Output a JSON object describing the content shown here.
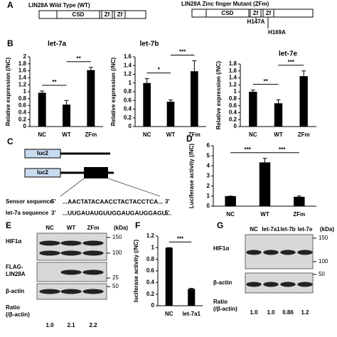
{
  "panel_labels": [
    "A",
    "B",
    "C",
    "D",
    "E",
    "F",
    "G"
  ],
  "panel_a": {
    "wt_title": "LIN28A Wild Type (WT)",
    "wt_domains": [
      "CSD",
      "Zf",
      "Zf"
    ],
    "zfm_title": "LIN28A Zinc finger Mutant (ZFm)",
    "zfm_domains": [
      "CSD",
      "Zf",
      "Zf"
    ],
    "mutations": [
      "H147A",
      "H169A"
    ]
  },
  "panel_c": {
    "reporter": [
      "luc2",
      "luc2"
    ],
    "rows": [
      [
        "Sensor sequence",
        "5'",
        "...AACTATACAACCTACTACCTCA...",
        "3'"
      ],
      [
        "let-7a sequence",
        "3'",
        "...UUGAUAUGUUGGAUGAUGGAGU...",
        "5'"
      ]
    ]
  },
  "panel_e": {
    "lanes": [
      "NC",
      "WT",
      "ZFm"
    ],
    "kda_header": "(kDa)",
    "blots": [
      {
        "label_lines": [
          "HIF1α"
        ],
        "markers": [
          "150",
          "100"
        ]
      },
      {
        "label_lines": [
          "FLAG-",
          "LIN28A"
        ],
        "markers": [
          "25"
        ]
      },
      {
        "label_lines": [
          "β-actin"
        ],
        "markers": [
          "50"
        ]
      }
    ],
    "ratio_label": [
      "Ratio",
      "(/β-actin)"
    ],
    "ratios": [
      "1.0",
      "2.1",
      "2.2"
    ]
  },
  "panel_g": {
    "lanes": [
      "NC",
      "let-7a1",
      "let-7b",
      "let-7e"
    ],
    "kda_header": "(kDa)",
    "blots": [
      {
        "label_lines": [
          "HIF1α"
        ],
        "markers": [
          "150",
          "100"
        ]
      },
      {
        "label_lines": [
          "β-actin"
        ],
        "markers": [
          "50"
        ]
      }
    ],
    "ratio_label": [
      "Ratio",
      "(/β-actin)"
    ],
    "ratios": [
      "1.0",
      "1.0",
      "0.86",
      "1.2"
    ]
  },
  "chart_data": [
    {
      "type": "bar",
      "title": "let-7a",
      "y_label": "Relative expression (/NC)",
      "categories": [
        "NC",
        "WT",
        "ZFm"
      ],
      "values": [
        0.97,
        0.63,
        1.62
      ],
      "errors": [
        0.05,
        0.12,
        0.08
      ],
      "color": "#000000",
      "ylim": [
        0,
        2
      ],
      "yticks": [
        0,
        0.2,
        0.4,
        0.6,
        0.8,
        1,
        1.2,
        1.4,
        1.6,
        1.8,
        2
      ],
      "significance": [
        "**",
        "**"
      ]
    },
    {
      "type": "bar",
      "title": "let-7b",
      "y_label": "Relative expression (/NC)",
      "categories": [
        "NC",
        "WT",
        "ZFm"
      ],
      "values": [
        1.0,
        0.57,
        1.27
      ],
      "errors": [
        0.1,
        0.04,
        0.24
      ],
      "color": "#000000",
      "ylim": [
        0,
        1.6
      ],
      "yticks": [
        0,
        0.2,
        0.4,
        0.6,
        0.8,
        1,
        1.2,
        1.4,
        1.6
      ],
      "significance": [
        "*",
        "***"
      ]
    },
    {
      "type": "bar",
      "title": "let-7e",
      "y_label": "Relative expression (/NC)",
      "categories": [
        "NC",
        "WT",
        "ZFm"
      ],
      "values": [
        1.0,
        0.67,
        1.45
      ],
      "errors": [
        0.05,
        0.1,
        0.15
      ],
      "color": "#000000",
      "ylim": [
        0,
        1.8
      ],
      "yticks": [
        0,
        0.2,
        0.4,
        0.6,
        0.8,
        1,
        1.2,
        1.4,
        1.6,
        1.8
      ],
      "significance": [
        "**",
        "***"
      ]
    },
    {
      "type": "bar",
      "y_label": "Luciferase activity (/NC)",
      "categories": [
        "NC",
        "WT",
        "ZFm"
      ],
      "values": [
        1,
        4.35,
        0.93
      ],
      "errors": [
        0,
        0.4,
        0.08
      ],
      "color": "#000000",
      "ylim": [
        0,
        6
      ],
      "yticks": [
        0,
        1,
        2,
        3,
        4,
        5,
        6
      ],
      "significance": [
        "***",
        "***"
      ]
    },
    {
      "type": "bar",
      "y_label": "luciferase activity (/NC)",
      "categories": [
        "NC",
        "let-7a1"
      ],
      "values": [
        1,
        0.29
      ],
      "errors": [
        0,
        0.01
      ],
      "color": "#000000",
      "ylim": [
        0,
        1.2
      ],
      "yticks": [
        0,
        0.2,
        0.4,
        0.6,
        0.8,
        1,
        1.2
      ],
      "significance": [
        "***"
      ]
    }
  ]
}
